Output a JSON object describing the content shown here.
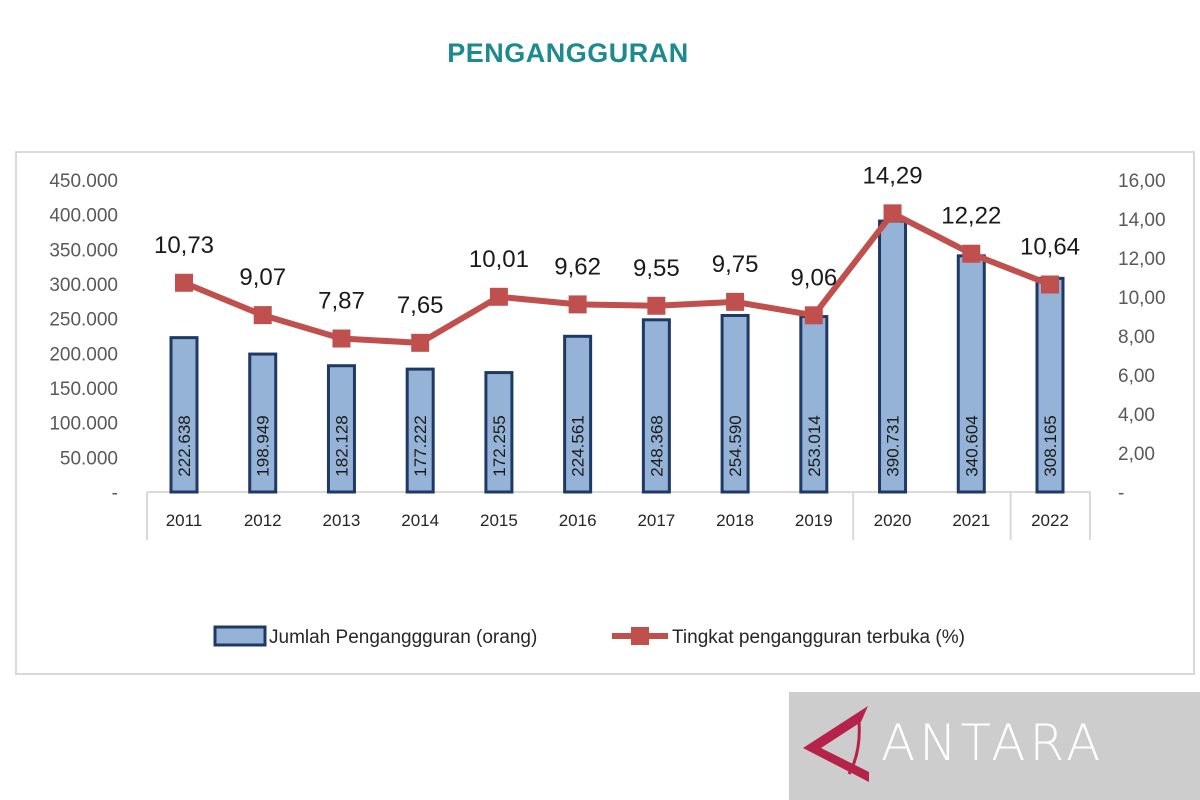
{
  "chart_data": {
    "type": "bar+line",
    "title": "PENGANGGURAN",
    "categories": [
      "2011",
      "2012",
      "2013",
      "2014",
      "2015",
      "2016",
      "2017",
      "2018",
      "2019",
      "2020",
      "2021",
      "2022"
    ],
    "series": [
      {
        "name": "Jumlah Penganggguran (orang)",
        "type": "bar",
        "axis": "left",
        "values": [
          222638,
          198949,
          182128,
          177222,
          172255,
          224561,
          248368,
          254590,
          253014,
          390731,
          340604,
          308165
        ],
        "labels": [
          "222.638",
          "198.949",
          "182.128",
          "177.222",
          "172.255",
          "224.561",
          "248.368",
          "254.590",
          "253.014",
          "390.731",
          "340.604",
          "308.165"
        ],
        "color": "#95b3d7",
        "border": "#1f3864"
      },
      {
        "name": "Tingkat pengangguran terbuka (%)",
        "type": "line",
        "axis": "right",
        "values": [
          10.73,
          9.07,
          7.87,
          7.65,
          10.01,
          9.62,
          9.55,
          9.75,
          9.06,
          14.29,
          12.22,
          10.64
        ],
        "labels": [
          "10,73",
          "9,07",
          "7,87",
          "7,65",
          "10,01",
          "9,62",
          "9,55",
          "9,75",
          "9,06",
          "14,29",
          "12,22",
          "10,64"
        ],
        "color": "#c0504d"
      }
    ],
    "left_axis": {
      "range": [
        0,
        450000
      ],
      "ticks": [
        "-",
        "50.000",
        "100.000",
        "150.000",
        "200.000",
        "250.000",
        "300.000",
        "350.000",
        "400.000",
        "450.000"
      ]
    },
    "right_axis": {
      "range": [
        0,
        16
      ],
      "ticks": [
        "-",
        "2,00",
        "4,00",
        "6,00",
        "8,00",
        "10,00",
        "12,00",
        "14,00",
        "16,00"
      ]
    },
    "grid": false,
    "legend_position": "bottom"
  },
  "watermark": {
    "text": "ANTARA",
    "accent": "#b5224a"
  }
}
